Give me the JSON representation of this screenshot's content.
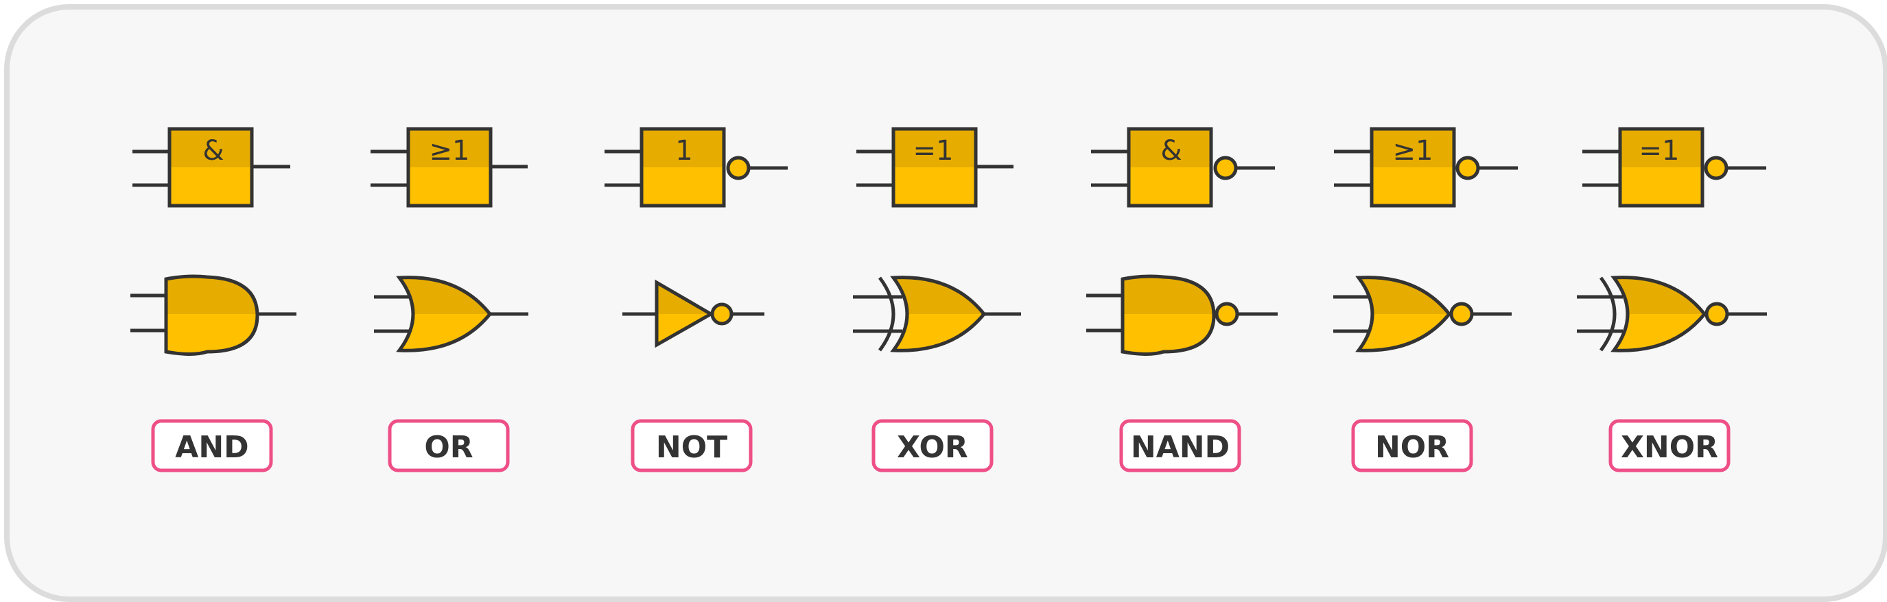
{
  "colors": {
    "gate_fill": "#FFC000",
    "gate_shade": "#E6AC00",
    "stroke": "#333333",
    "label_border": "#EE4F86",
    "label_bg": "#FFFFFF",
    "card_bg": "#F7F7F7",
    "card_border": "#DCDCDC"
  },
  "gates": [
    {
      "name": "AND",
      "iec_symbol": "&",
      "ansi_shape": "and-icon"
    },
    {
      "name": "OR",
      "iec_symbol": "≥1",
      "ansi_shape": "or-icon"
    },
    {
      "name": "NOT",
      "iec_symbol": "1",
      "ansi_shape": "not-icon"
    },
    {
      "name": "XOR",
      "iec_symbol": "=1",
      "ansi_shape": "xor-icon"
    },
    {
      "name": "NAND",
      "iec_symbol": "&",
      "ansi_shape": "nand-icon"
    },
    {
      "name": "NOR",
      "iec_symbol": "≥1",
      "ansi_shape": "nor-icon"
    },
    {
      "name": "XNOR",
      "iec_symbol": "=1",
      "ansi_shape": "xnor-icon"
    }
  ]
}
